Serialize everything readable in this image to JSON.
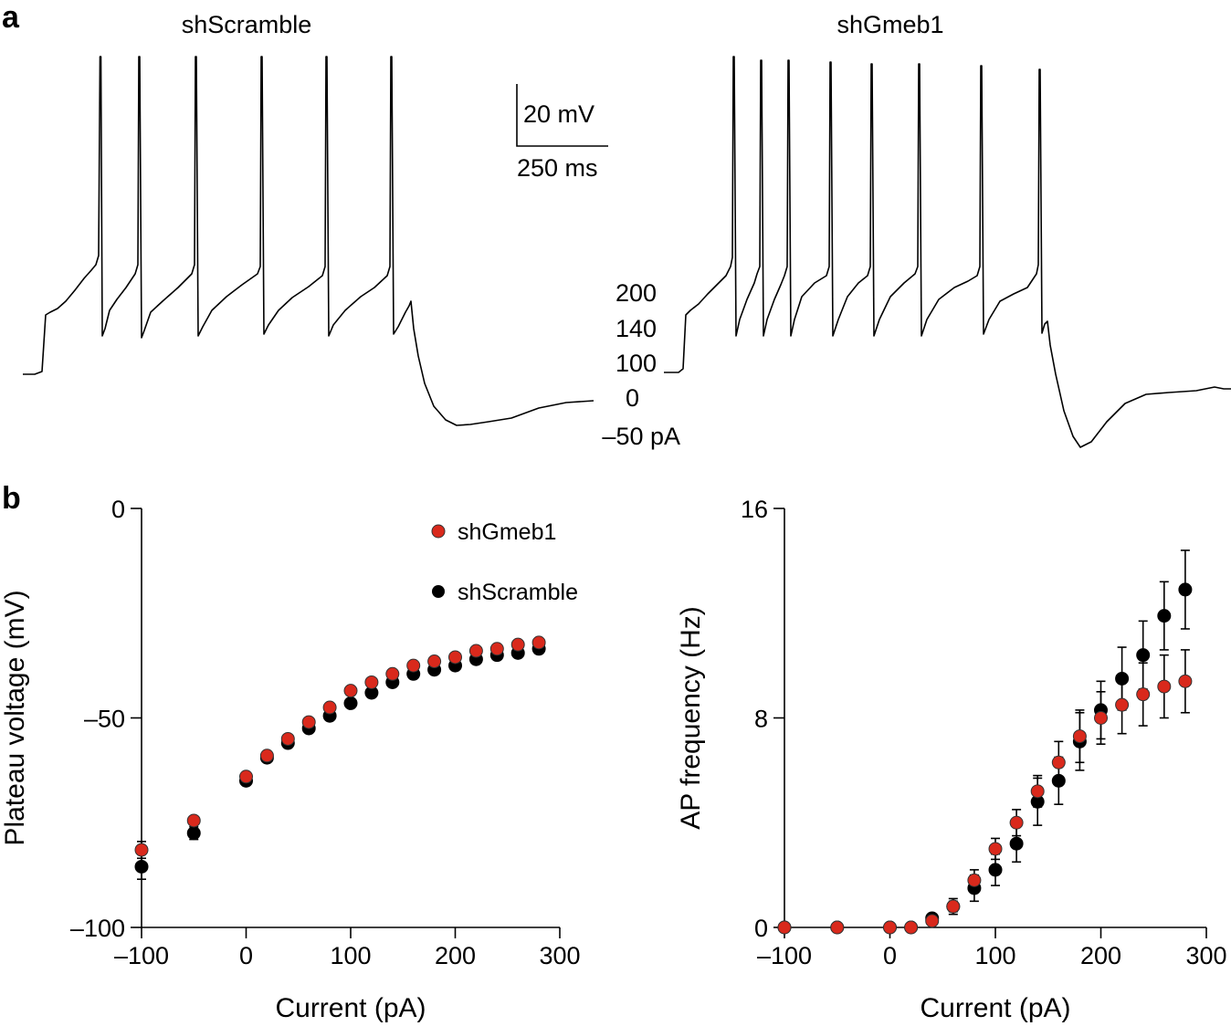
{
  "panel_a": {
    "label": "a",
    "trace_titles": [
      "shScramble",
      "shGmeb1"
    ],
    "scale_bar": {
      "voltage": "20 mV",
      "time": "250 ms"
    },
    "current_steps": [
      "200",
      "140",
      "100",
      "0",
      "–50 pA"
    ]
  },
  "panel_b": {
    "label": "b"
  },
  "chart_data": [
    {
      "type": "scatter",
      "title": "",
      "xlabel": "Current (pA)",
      "ylabel": "Plateau voltage (mV)",
      "xlim": [
        -100,
        300
      ],
      "ylim": [
        -100,
        0
      ],
      "xticks": [
        -100,
        0,
        100,
        200,
        300
      ],
      "yticks": [
        -100,
        -50,
        0
      ],
      "xtick_labels": [
        "–100",
        "0",
        "100",
        "200",
        "300"
      ],
      "ytick_labels": [
        "–100",
        "–50",
        "0"
      ],
      "legend": {
        "position": "top-right",
        "entries": [
          "shGmeb1",
          "shScramble"
        ]
      },
      "series": [
        {
          "name": "shScramble",
          "color": "#000000",
          "x": [
            -100,
            -50,
            0,
            20,
            40,
            60,
            80,
            100,
            120,
            140,
            160,
            180,
            200,
            220,
            240,
            260,
            280
          ],
          "y": [
            -85.5,
            -77.5,
            -65,
            -59.5,
            -56,
            -52.5,
            -49.5,
            -46.5,
            -44,
            -41.5,
            -39.5,
            -38.5,
            -37.5,
            -36,
            -35,
            -34.5,
            -33.5
          ],
          "err": [
            3,
            1.5,
            0.5,
            0.5,
            0.5,
            0.5,
            0.5,
            0.5,
            0.5,
            0.5,
            0.5,
            0.5,
            0.5,
            0.5,
            0.5,
            0.5,
            0.5
          ]
        },
        {
          "name": "shGmeb1",
          "color": "#d9291c",
          "x": [
            -100,
            -50,
            0,
            20,
            40,
            60,
            80,
            100,
            120,
            140,
            160,
            180,
            200,
            220,
            240,
            260,
            280
          ],
          "y": [
            -81.5,
            -74.5,
            -64,
            -59,
            -55,
            -51,
            -47.5,
            -43.5,
            -41.5,
            -39.5,
            -37.5,
            -36.5,
            -35.5,
            -34,
            -33.5,
            -32.5,
            -32
          ],
          "err": [
            2,
            1,
            0.5,
            0.5,
            0.5,
            0.5,
            0.5,
            0.5,
            0.5,
            0.5,
            0.5,
            0.5,
            0.5,
            0.5,
            0.5,
            0.5,
            0.5
          ]
        }
      ]
    },
    {
      "type": "scatter",
      "title": "",
      "xlabel": "Current (pA)",
      "ylabel": "AP frequency (Hz)",
      "xlim": [
        -100,
        300
      ],
      "ylim": [
        0,
        16
      ],
      "xticks": [
        -100,
        0,
        100,
        200,
        300
      ],
      "yticks": [
        0,
        8,
        16
      ],
      "xtick_labels": [
        "–100",
        "0",
        "100",
        "200",
        "300"
      ],
      "ytick_labels": [
        "0",
        "8",
        "16"
      ],
      "series": [
        {
          "name": "shScramble",
          "color": "#000000",
          "x": [
            -100,
            -50,
            0,
            20,
            40,
            60,
            80,
            100,
            120,
            140,
            160,
            180,
            200,
            220,
            240,
            260,
            280
          ],
          "y": [
            0,
            0,
            0,
            0,
            0.35,
            0.8,
            1.5,
            2.2,
            3.2,
            4.8,
            5.6,
            7.1,
            8.3,
            9.5,
            10.4,
            11.9,
            12.9
          ],
          "err": [
            0,
            0,
            0,
            0,
            0.1,
            0.3,
            0.5,
            0.6,
            0.7,
            0.9,
            0.9,
            1.1,
            1.1,
            1.2,
            1.3,
            1.3,
            1.5
          ]
        },
        {
          "name": "shGmeb1",
          "color": "#d9291c",
          "x": [
            -100,
            -50,
            0,
            20,
            40,
            60,
            80,
            100,
            120,
            140,
            160,
            180,
            200,
            220,
            240,
            260,
            280
          ],
          "y": [
            0,
            0,
            0,
            0,
            0.25,
            0.8,
            1.8,
            3.0,
            4.0,
            5.2,
            6.3,
            7.3,
            8.0,
            8.5,
            8.9,
            9.2,
            9.4
          ],
          "err": [
            0,
            0,
            0,
            0,
            0.1,
            0.2,
            0.4,
            0.4,
            0.5,
            0.6,
            0.8,
            1.0,
            1.0,
            1.1,
            1.2,
            1.2,
            1.2
          ]
        }
      ]
    }
  ]
}
